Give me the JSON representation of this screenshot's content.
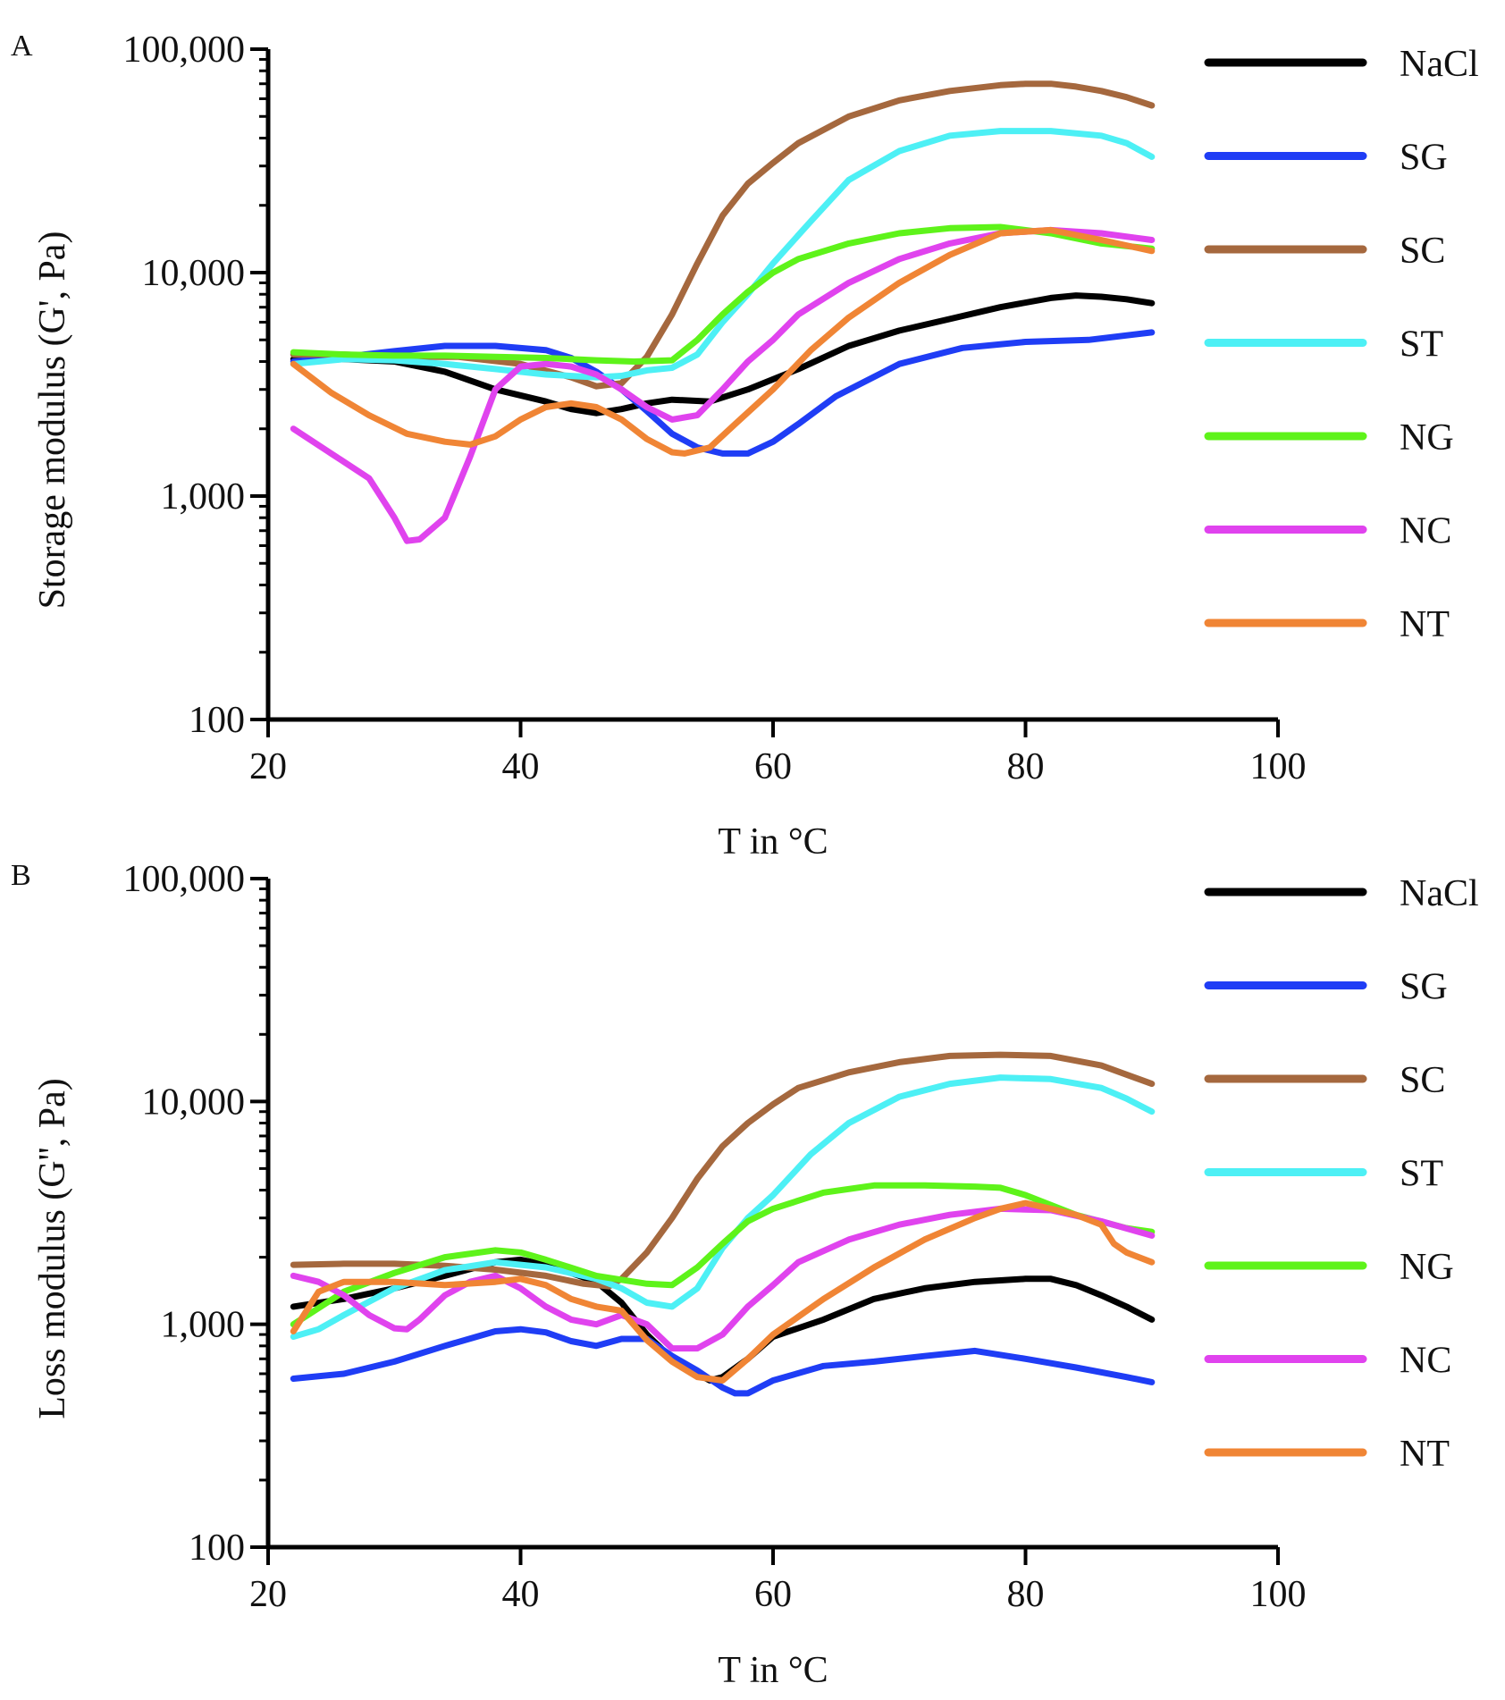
{
  "chart_data": [
    {
      "panel": "A",
      "type": "line",
      "xlabel": "T in °C",
      "ylabel": "Storage modulus (G', Pa)",
      "xlim": [
        20,
        100
      ],
      "ylim": [
        100,
        100000
      ],
      "yscale": "log",
      "xticks": [
        20,
        40,
        60,
        80,
        100
      ],
      "xtick_labels": [
        "20",
        "40",
        "60",
        "80",
        "100"
      ],
      "yticks": [
        100,
        1000,
        10000,
        100000
      ],
      "ytick_labels": [
        "100",
        "1,000",
        "10,000",
        "100,000"
      ],
      "grid": false,
      "legend_position": "right",
      "series": [
        {
          "name": "NaCl",
          "color": "#000000",
          "x": [
            22,
            26,
            30,
            34,
            38,
            42,
            44,
            46,
            48,
            50,
            52,
            55,
            58,
            62,
            66,
            70,
            74,
            78,
            82,
            84,
            86,
            88,
            90
          ],
          "y": [
            4100,
            4100,
            4000,
            3600,
            3000,
            2650,
            2450,
            2350,
            2450,
            2600,
            2700,
            2650,
            3000,
            3700,
            4700,
            5500,
            6200,
            7000,
            7700,
            7900,
            7800,
            7600,
            7300
          ]
        },
        {
          "name": "SG",
          "color": "#1f3df5",
          "x": [
            22,
            26,
            30,
            34,
            38,
            42,
            44,
            46,
            48,
            50,
            52,
            54,
            56,
            58,
            60,
            62,
            65,
            70,
            75,
            80,
            85,
            90
          ],
          "y": [
            4000,
            4200,
            4450,
            4700,
            4700,
            4500,
            4150,
            3600,
            3000,
            2400,
            1900,
            1650,
            1550,
            1550,
            1750,
            2100,
            2800,
            3900,
            4600,
            4900,
            5000,
            5400
          ]
        },
        {
          "name": "SC",
          "color": "#a5683e",
          "x": [
            22,
            26,
            30,
            35,
            40,
            44,
            46,
            48,
            50,
            52,
            54,
            56,
            58,
            60,
            62,
            66,
            70,
            74,
            78,
            80,
            82,
            84,
            86,
            88,
            90
          ],
          "y": [
            4300,
            4300,
            4200,
            4200,
            3900,
            3400,
            3100,
            3200,
            4200,
            6500,
            11000,
            18000,
            25000,
            31000,
            38000,
            50000,
            59000,
            65000,
            69000,
            70000,
            70000,
            68000,
            65000,
            61000,
            56000
          ]
        },
        {
          "name": "ST",
          "color": "#4df0f5",
          "x": [
            22,
            26,
            30,
            34,
            38,
            42,
            46,
            48,
            50,
            52,
            54,
            56,
            58,
            60,
            63,
            66,
            70,
            74,
            78,
            82,
            86,
            88,
            90
          ],
          "y": [
            3900,
            4100,
            4050,
            3900,
            3700,
            3500,
            3400,
            3450,
            3650,
            3750,
            4300,
            6000,
            8000,
            11000,
            17000,
            26000,
            35000,
            41000,
            43000,
            43000,
            41000,
            38000,
            33000
          ]
        },
        {
          "name": "NG",
          "color": "#5ef31a",
          "x": [
            22,
            26,
            30,
            34,
            38,
            42,
            46,
            49,
            52,
            54,
            56,
            58,
            60,
            62,
            66,
            70,
            74,
            78,
            82,
            86,
            90
          ],
          "y": [
            4400,
            4300,
            4250,
            4250,
            4200,
            4150,
            4050,
            4000,
            4050,
            5000,
            6500,
            8200,
            10000,
            11500,
            13500,
            15000,
            15800,
            16000,
            15000,
            13500,
            12800
          ]
        },
        {
          "name": "NC",
          "color": "#e043ee",
          "x": [
            22,
            25,
            28,
            30,
            31,
            32,
            34,
            36,
            38,
            40,
            42,
            44,
            46,
            48,
            50,
            52,
            54,
            56,
            58,
            60,
            62,
            66,
            70,
            74,
            78,
            82,
            86,
            90
          ],
          "y": [
            2000,
            1550,
            1200,
            800,
            630,
            640,
            800,
            1500,
            3000,
            3800,
            3900,
            3800,
            3500,
            3000,
            2500,
            2200,
            2300,
            3000,
            4000,
            5000,
            6500,
            9000,
            11500,
            13500,
            15000,
            15500,
            15000,
            14000
          ]
        },
        {
          "name": "NT",
          "color": "#f08535",
          "x": [
            22,
            25,
            28,
            31,
            34,
            36,
            38,
            40,
            42,
            44,
            46,
            48,
            50,
            52,
            53,
            55,
            57,
            60,
            63,
            66,
            70,
            74,
            78,
            82,
            86,
            90
          ],
          "y": [
            3900,
            2900,
            2300,
            1900,
            1750,
            1700,
            1850,
            2200,
            2500,
            2600,
            2500,
            2200,
            1800,
            1570,
            1550,
            1650,
            2100,
            3000,
            4500,
            6300,
            9000,
            12000,
            15000,
            15500,
            14000,
            12500
          ]
        }
      ]
    },
    {
      "panel": "B",
      "type": "line",
      "xlabel": "T in °C",
      "ylabel": "Loss modulus (G'', Pa)",
      "xlim": [
        20,
        100
      ],
      "ylim": [
        100,
        100000
      ],
      "yscale": "log",
      "xticks": [
        20,
        40,
        60,
        80,
        100
      ],
      "xtick_labels": [
        "20",
        "40",
        "60",
        "80",
        "100"
      ],
      "yticks": [
        100,
        1000,
        10000,
        100000
      ],
      "ytick_labels": [
        "100",
        "1,000",
        "10,000",
        "100,000"
      ],
      "grid": false,
      "legend_position": "right",
      "series": [
        {
          "name": "NaCl",
          "color": "#000000",
          "x": [
            22,
            26,
            30,
            34,
            38,
            40,
            42,
            44,
            46,
            48,
            50,
            52,
            54,
            55,
            56,
            58,
            60,
            64,
            68,
            72,
            76,
            80,
            82,
            84,
            86,
            88,
            90
          ],
          "y": [
            1200,
            1300,
            1450,
            1650,
            1900,
            1950,
            1850,
            1700,
            1550,
            1250,
            900,
            700,
            600,
            560,
            580,
            700,
            880,
            1050,
            1300,
            1450,
            1550,
            1600,
            1600,
            1500,
            1350,
            1200,
            1050
          ]
        },
        {
          "name": "SG",
          "color": "#1f3df5",
          "x": [
            22,
            26,
            30,
            34,
            38,
            40,
            42,
            44,
            46,
            48,
            50,
            52,
            54,
            56,
            57,
            58,
            60,
            64,
            68,
            72,
            76,
            80,
            84,
            88,
            90
          ],
          "y": [
            570,
            600,
            680,
            800,
            930,
            950,
            920,
            840,
            800,
            860,
            860,
            720,
            620,
            520,
            490,
            490,
            560,
            650,
            680,
            720,
            760,
            700,
            640,
            580,
            550
          ]
        },
        {
          "name": "SC",
          "color": "#a5683e",
          "x": [
            22,
            26,
            30,
            34,
            38,
            42,
            45,
            47,
            48,
            50,
            52,
            54,
            56,
            58,
            60,
            62,
            66,
            70,
            74,
            78,
            82,
            86,
            88,
            90
          ],
          "y": [
            1850,
            1870,
            1870,
            1830,
            1760,
            1650,
            1520,
            1480,
            1600,
            2100,
            3000,
            4500,
            6300,
            8000,
            9700,
            11500,
            13500,
            15000,
            16000,
            16200,
            16000,
            14500,
            13200,
            12000
          ]
        },
        {
          "name": "ST",
          "color": "#4df0f5",
          "x": [
            22,
            24,
            26,
            30,
            34,
            38,
            42,
            46,
            48,
            50,
            52,
            54,
            56,
            58,
            60,
            63,
            66,
            70,
            74,
            78,
            82,
            86,
            88,
            90
          ],
          "y": [
            880,
            950,
            1100,
            1450,
            1750,
            1900,
            1800,
            1600,
            1450,
            1250,
            1200,
            1450,
            2200,
            3000,
            3800,
            5800,
            8000,
            10500,
            12000,
            12800,
            12600,
            11500,
            10300,
            9000
          ]
        },
        {
          "name": "NG",
          "color": "#5ef31a",
          "x": [
            22,
            26,
            30,
            34,
            38,
            40,
            42,
            46,
            50,
            52,
            54,
            56,
            58,
            60,
            64,
            68,
            72,
            76,
            78,
            80,
            84,
            88,
            90
          ],
          "y": [
            1000,
            1400,
            1700,
            2000,
            2150,
            2100,
            1950,
            1650,
            1520,
            1500,
            1800,
            2300,
            2900,
            3300,
            3900,
            4200,
            4200,
            4150,
            4100,
            3800,
            3100,
            2700,
            2600
          ]
        },
        {
          "name": "NC",
          "color": "#e043ee",
          "x": [
            22,
            24,
            26,
            28,
            30,
            31,
            32,
            34,
            36,
            38,
            40,
            42,
            44,
            46,
            48,
            50,
            52,
            54,
            56,
            58,
            60,
            62,
            66,
            70,
            74,
            78,
            82,
            86,
            90
          ],
          "y": [
            1650,
            1550,
            1350,
            1100,
            960,
            950,
            1050,
            1350,
            1550,
            1650,
            1450,
            1200,
            1050,
            1000,
            1100,
            1000,
            780,
            780,
            900,
            1200,
            1500,
            1900,
            2400,
            2800,
            3100,
            3300,
            3250,
            2900,
            2500
          ]
        },
        {
          "name": "NT",
          "color": "#f08535",
          "x": [
            22,
            24,
            26,
            30,
            34,
            38,
            40,
            42,
            44,
            46,
            48,
            50,
            52,
            54,
            56,
            58,
            60,
            64,
            68,
            72,
            76,
            78,
            80,
            82,
            84,
            86,
            87,
            88,
            90
          ],
          "y": [
            930,
            1400,
            1550,
            1550,
            1500,
            1550,
            1600,
            1500,
            1300,
            1200,
            1150,
            850,
            680,
            580,
            560,
            700,
            900,
            1300,
            1800,
            2400,
            3000,
            3300,
            3500,
            3300,
            3100,
            2800,
            2300,
            2100,
            1900
          ]
        }
      ]
    }
  ]
}
